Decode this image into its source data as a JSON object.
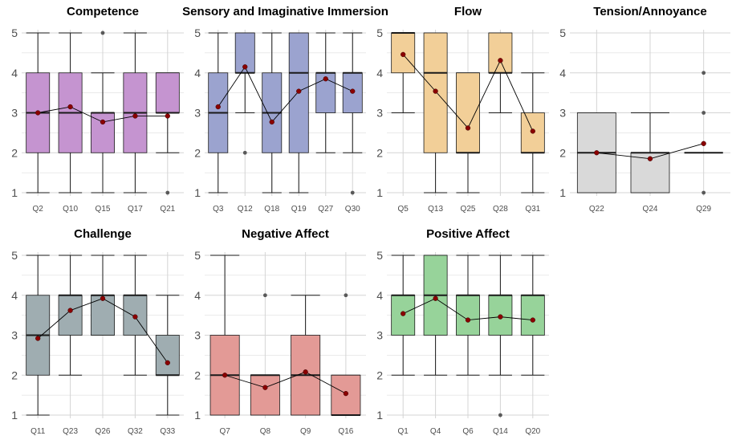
{
  "chart_data": [
    {
      "type": "box",
      "title": "Competence",
      "fill": "#c594d0",
      "ylim": [
        1,
        5
      ],
      "yticks": [
        "1",
        "2",
        "3",
        "4",
        "5"
      ],
      "categories": [
        "Q2",
        "Q10",
        "Q15",
        "Q17",
        "Q21"
      ],
      "boxes": [
        {
          "min": 1,
          "q1": 2,
          "median": 3,
          "q3": 4,
          "max": 5,
          "mean": 3.0,
          "outliers": []
        },
        {
          "min": 1,
          "q1": 2,
          "median": 3,
          "q3": 4,
          "max": 5,
          "mean": 3.15,
          "outliers": []
        },
        {
          "min": 1,
          "q1": 2,
          "median": 3,
          "q3": 3,
          "max": 4,
          "mean": 2.77,
          "outliers": [
            5
          ]
        },
        {
          "min": 1,
          "q1": 2,
          "median": 3,
          "q3": 4,
          "max": 5,
          "mean": 2.92,
          "outliers": []
        },
        {
          "min": 2,
          "q1": 3,
          "median": 3,
          "q3": 4,
          "max": 4,
          "mean": 2.92,
          "outliers": [
            1
          ]
        }
      ]
    },
    {
      "type": "box",
      "title": "Sensory and Imaginative Immersion",
      "fill": "#9ba3cf",
      "ylim": [
        1,
        5
      ],
      "yticks": [
        "1",
        "2",
        "3",
        "4",
        "5"
      ],
      "categories": [
        "Q3",
        "Q12",
        "Q18",
        "Q19",
        "Q27",
        "Q30"
      ],
      "boxes": [
        {
          "min": 1,
          "q1": 2,
          "median": 3,
          "q3": 4,
          "max": 5,
          "mean": 3.15,
          "outliers": []
        },
        {
          "min": 3,
          "q1": 4,
          "median": 4,
          "q3": 5,
          "max": 5,
          "mean": 4.15,
          "outliers": [
            2
          ]
        },
        {
          "min": 1,
          "q1": 2,
          "median": 3,
          "q3": 4,
          "max": 5,
          "mean": 2.77,
          "outliers": []
        },
        {
          "min": 1,
          "q1": 2,
          "median": 4,
          "q3": 5,
          "max": 5,
          "mean": 3.54,
          "outliers": []
        },
        {
          "min": 2,
          "q1": 3,
          "median": 4,
          "q3": 4,
          "max": 5,
          "mean": 3.85,
          "outliers": []
        },
        {
          "min": 2,
          "q1": 3,
          "median": 4,
          "q3": 4,
          "max": 5,
          "mean": 3.54,
          "outliers": [
            1
          ]
        }
      ]
    },
    {
      "type": "box",
      "title": "Flow",
      "fill": "#f2cf98",
      "ylim": [
        1,
        5
      ],
      "yticks": [
        "1",
        "2",
        "3",
        "4",
        "5"
      ],
      "categories": [
        "Q5",
        "Q13",
        "Q25",
        "Q28",
        "Q31"
      ],
      "boxes": [
        {
          "min": 3,
          "q1": 4,
          "median": 5,
          "q3": 5,
          "max": 5,
          "mean": 4.46,
          "outliers": []
        },
        {
          "min": 1,
          "q1": 2,
          "median": 4,
          "q3": 5,
          "max": 5,
          "mean": 3.54,
          "outliers": []
        },
        {
          "min": 1,
          "q1": 2,
          "median": 2,
          "q3": 4,
          "max": 4,
          "mean": 2.62,
          "outliers": []
        },
        {
          "min": 3,
          "q1": 4,
          "median": 4,
          "q3": 5,
          "max": 5,
          "mean": 4.31,
          "outliers": []
        },
        {
          "min": 1,
          "q1": 2,
          "median": 2,
          "q3": 3,
          "max": 4,
          "mean": 2.54,
          "outliers": []
        }
      ]
    },
    {
      "type": "box",
      "title": "Tension/Annoyance",
      "fill": "#d9d9d9",
      "ylim": [
        1,
        5
      ],
      "yticks": [
        "1",
        "2",
        "3",
        "4",
        "5"
      ],
      "categories": [
        "Q22",
        "Q24",
        "Q29"
      ],
      "boxes": [
        {
          "min": 1,
          "q1": 1,
          "median": 2,
          "q3": 3,
          "max": 3,
          "mean": 2.0,
          "outliers": []
        },
        {
          "min": 1,
          "q1": 1,
          "median": 2,
          "q3": 2,
          "max": 3,
          "mean": 1.85,
          "outliers": []
        },
        {
          "min": 2,
          "q1": 2,
          "median": 2,
          "q3": 2,
          "max": 2,
          "mean": 2.23,
          "outliers": [
            1,
            3,
            4
          ]
        }
      ]
    },
    {
      "type": "box",
      "title": "Challenge",
      "fill": "#9fadb1",
      "ylim": [
        1,
        5
      ],
      "yticks": [
        "1",
        "2",
        "3",
        "4",
        "5"
      ],
      "categories": [
        "Q11",
        "Q23",
        "Q26",
        "Q32",
        "Q33"
      ],
      "boxes": [
        {
          "min": 1,
          "q1": 2,
          "median": 3,
          "q3": 4,
          "max": 5,
          "mean": 2.92,
          "outliers": []
        },
        {
          "min": 2,
          "q1": 3,
          "median": 4,
          "q3": 4,
          "max": 5,
          "mean": 3.62,
          "outliers": []
        },
        {
          "min": 3,
          "q1": 3,
          "median": 4,
          "q3": 4,
          "max": 5,
          "mean": 3.92,
          "outliers": []
        },
        {
          "min": 2,
          "q1": 3,
          "median": 4,
          "q3": 4,
          "max": 5,
          "mean": 3.46,
          "outliers": []
        },
        {
          "min": 1,
          "q1": 2,
          "median": 2,
          "q3": 3,
          "max": 4,
          "mean": 2.31,
          "outliers": []
        }
      ]
    },
    {
      "type": "box",
      "title": "Negative Affect",
      "fill": "#e39a96",
      "ylim": [
        1,
        5
      ],
      "yticks": [
        "1",
        "2",
        "3",
        "4",
        "5"
      ],
      "categories": [
        "Q7",
        "Q8",
        "Q9",
        "Q16"
      ],
      "boxes": [
        {
          "min": 1,
          "q1": 1,
          "median": 2,
          "q3": 3,
          "max": 5,
          "mean": 2.0,
          "outliers": []
        },
        {
          "min": 1,
          "q1": 1,
          "median": 2,
          "q3": 2,
          "max": 2,
          "mean": 1.69,
          "outliers": [
            4
          ]
        },
        {
          "min": 1,
          "q1": 1,
          "median": 2,
          "q3": 3,
          "max": 4,
          "mean": 2.08,
          "outliers": []
        },
        {
          "min": 1,
          "q1": 1,
          "median": 1,
          "q3": 2,
          "max": 2,
          "mean": 1.54,
          "outliers": [
            4
          ]
        }
      ]
    },
    {
      "type": "box",
      "title": "Positive Affect",
      "fill": "#97d39a",
      "ylim": [
        1,
        5
      ],
      "yticks": [
        "1",
        "2",
        "3",
        "4",
        "5"
      ],
      "categories": [
        "Q1",
        "Q4",
        "Q6",
        "Q14",
        "Q20"
      ],
      "boxes": [
        {
          "min": 2,
          "q1": 3,
          "median": 4,
          "q3": 4,
          "max": 5,
          "mean": 3.54,
          "outliers": []
        },
        {
          "min": 2,
          "q1": 3,
          "median": 4,
          "q3": 5,
          "max": 5,
          "mean": 3.92,
          "outliers": []
        },
        {
          "min": 2,
          "q1": 3,
          "median": 4,
          "q3": 4,
          "max": 5,
          "mean": 3.38,
          "outliers": []
        },
        {
          "min": 2,
          "q1": 3,
          "median": 4,
          "q3": 4,
          "max": 5,
          "mean": 3.46,
          "outliers": [
            1
          ]
        },
        {
          "min": 2,
          "q1": 3,
          "median": 4,
          "q3": 4,
          "max": 5,
          "mean": 3.38,
          "outliers": []
        }
      ]
    }
  ],
  "style": {
    "grid_color": "#d4d4d4",
    "box_stroke": "#1a1a1a",
    "mean_point_color": "#8b0000",
    "outlier_color": "#595959",
    "mean_line_color": "#000000"
  }
}
